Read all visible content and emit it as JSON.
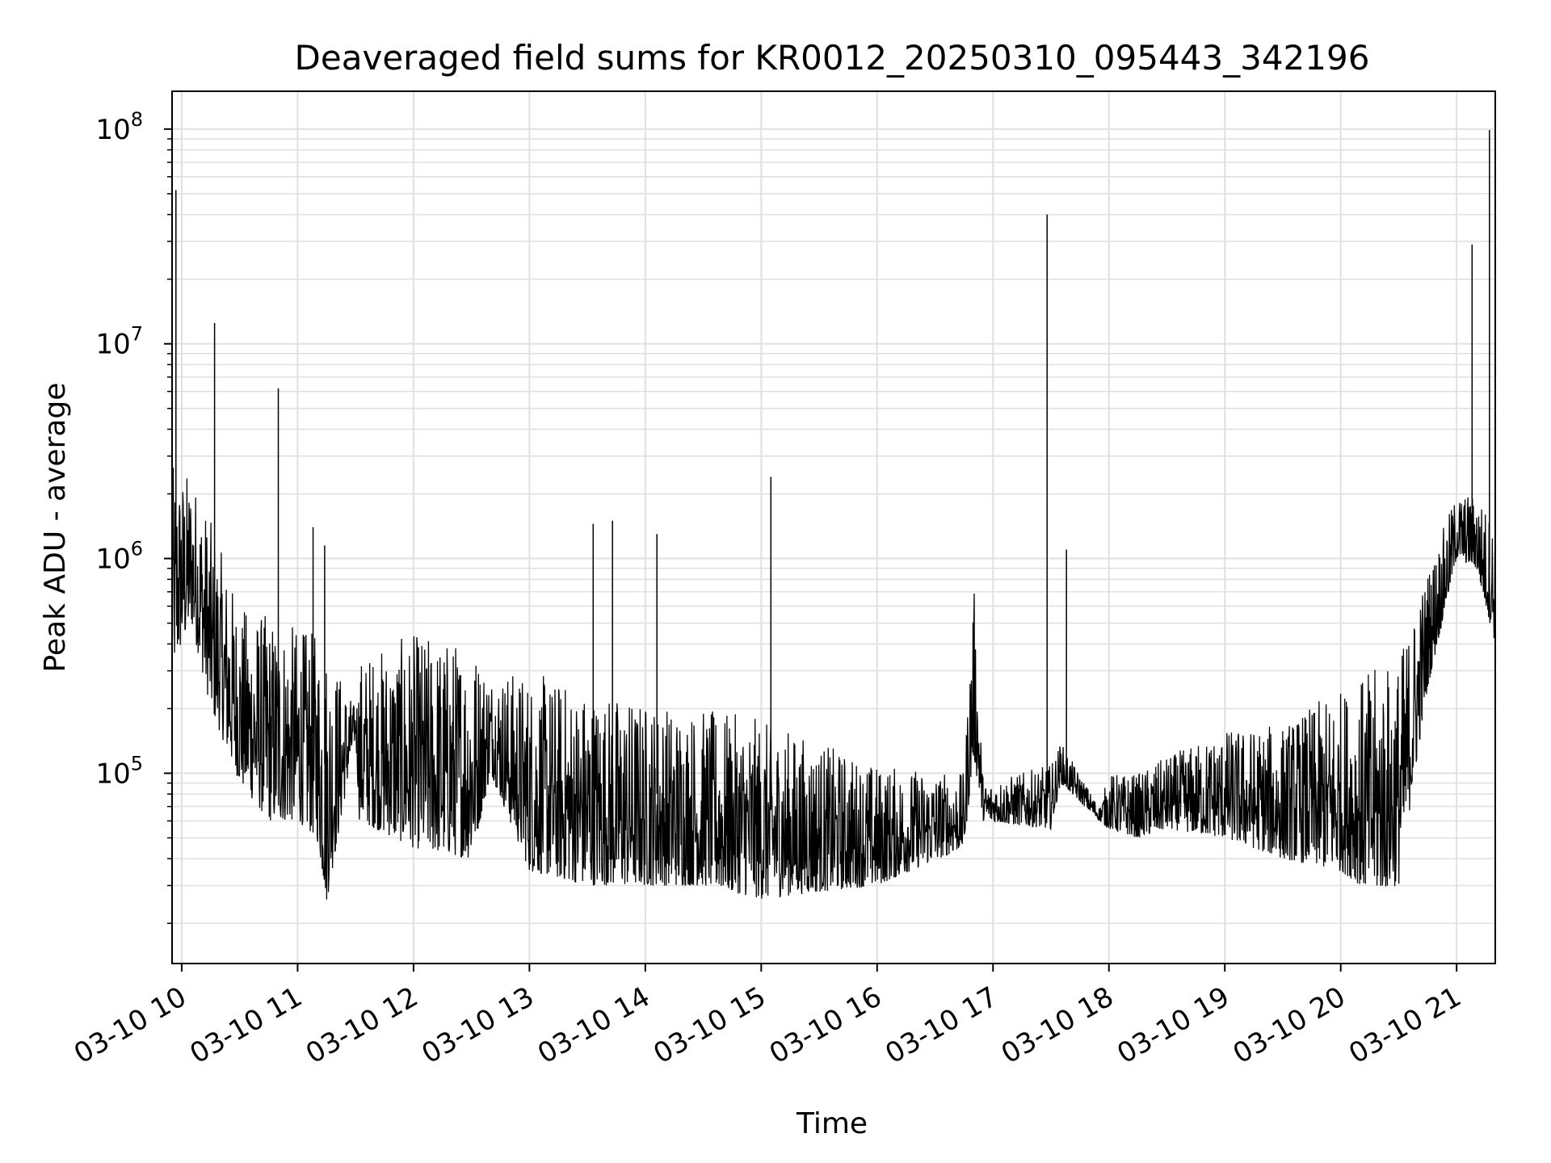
{
  "chart_data": {
    "type": "line",
    "title": "Deaveraged field sums for KR0012_20250310_095443_342196",
    "xlabel": "Time",
    "ylabel": "Peak ADU - average",
    "yscale": "log",
    "ylim": [
      13000,
      150000000
    ],
    "xlim": [
      "2025-03-10 09:55",
      "2025-03-10 21:20"
    ],
    "x_unit": "time",
    "grid": true,
    "line_color": "#000000",
    "grid_color": "#e0e0e0",
    "x_ticks": [
      {
        "value": "2025-03-10 10:00",
        "label": "03-10 10"
      },
      {
        "value": "2025-03-10 11:00",
        "label": "03-10 11"
      },
      {
        "value": "2025-03-10 12:00",
        "label": "03-10 12"
      },
      {
        "value": "2025-03-10 13:00",
        "label": "03-10 13"
      },
      {
        "value": "2025-03-10 14:00",
        "label": "03-10 14"
      },
      {
        "value": "2025-03-10 15:00",
        "label": "03-10 15"
      },
      {
        "value": "2025-03-10 16:00",
        "label": "03-10 16"
      },
      {
        "value": "2025-03-10 17:00",
        "label": "03-10 17"
      },
      {
        "value": "2025-03-10 18:00",
        "label": "03-10 18"
      },
      {
        "value": "2025-03-10 19:00",
        "label": "03-10 19"
      },
      {
        "value": "2025-03-10 20:00",
        "label": "03-10 20"
      },
      {
        "value": "2025-03-10 21:00",
        "label": "03-10 21"
      }
    ],
    "y_ticks": [
      {
        "value": 100000,
        "base": "10",
        "exp": "5"
      },
      {
        "value": 1000000,
        "base": "10",
        "exp": "6"
      },
      {
        "value": 10000000,
        "base": "10",
        "exp": "7"
      },
      {
        "value": 100000000,
        "base": "10",
        "exp": "8"
      }
    ],
    "envelope": [
      {
        "t": "09:55",
        "low": 300000,
        "high": 2700000
      },
      {
        "t": "10:05",
        "low": 500000,
        "high": 2500000
      },
      {
        "t": "10:15",
        "low": 200000,
        "high": 1500000
      },
      {
        "t": "10:30",
        "low": 90000,
        "high": 600000
      },
      {
        "t": "10:45",
        "low": 60000,
        "high": 550000
      },
      {
        "t": "11:00",
        "low": 60000,
        "high": 480000
      },
      {
        "t": "11:10",
        "low": 50000,
        "high": 450000
      },
      {
        "t": "11:15",
        "low": 25000,
        "high": 420000
      },
      {
        "t": "11:30",
        "low": 150000,
        "high": 200000
      },
      {
        "t": "11:32",
        "low": 60000,
        "high": 350000
      },
      {
        "t": "12:00",
        "low": 45000,
        "high": 450000
      },
      {
        "t": "12:30",
        "low": 40000,
        "high": 420000
      },
      {
        "t": "12:40",
        "low": 100000,
        "high": 300000
      },
      {
        "t": "13:00",
        "low": 35000,
        "high": 300000
      },
      {
        "t": "13:30",
        "low": 30000,
        "high": 250000
      },
      {
        "t": "14:00",
        "low": 30000,
        "high": 220000
      },
      {
        "t": "14:30",
        "low": 30000,
        "high": 200000
      },
      {
        "t": "15:00",
        "low": 26000,
        "high": 180000
      },
      {
        "t": "15:30",
        "low": 28000,
        "high": 140000
      },
      {
        "t": "16:00",
        "low": 30000,
        "high": 110000
      },
      {
        "t": "16:45",
        "low": 45000,
        "high": 100000
      },
      {
        "t": "16:50",
        "low": 120000,
        "high": 800000
      },
      {
        "t": "16:55",
        "low": 60000,
        "high": 90000
      },
      {
        "t": "17:30",
        "low": 55000,
        "high": 110000
      },
      {
        "t": "17:35",
        "low": 90000,
        "high": 140000
      },
      {
        "t": "17:55",
        "low": 60000,
        "high": 70000
      },
      {
        "t": "18:00",
        "low": 55000,
        "high": 100000
      },
      {
        "t": "18:15",
        "low": 50000,
        "high": 100000
      },
      {
        "t": "18:30",
        "low": 55000,
        "high": 120000
      },
      {
        "t": "19:00",
        "low": 50000,
        "high": 160000
      },
      {
        "t": "19:30",
        "low": 40000,
        "high": 170000
      },
      {
        "t": "20:00",
        "low": 35000,
        "high": 250000
      },
      {
        "t": "20:15",
        "low": 28000,
        "high": 300000
      },
      {
        "t": "20:30",
        "low": 30000,
        "high": 350000
      },
      {
        "t": "20:45",
        "low": 250000,
        "high": 900000
      },
      {
        "t": "21:00",
        "low": 1000000,
        "high": 2000000
      },
      {
        "t": "21:10",
        "low": 900000,
        "high": 2000000
      },
      {
        "t": "21:20",
        "low": 400000,
        "high": 1500000
      }
    ],
    "spikes": [
      {
        "t": "09:57",
        "value": 52000000
      },
      {
        "t": "10:17",
        "value": 12500000
      },
      {
        "t": "10:50",
        "value": 6200000
      },
      {
        "t": "11:08",
        "value": 1400000
      },
      {
        "t": "11:14",
        "value": 1150000
      },
      {
        "t": "13:33",
        "value": 1450000
      },
      {
        "t": "13:43",
        "value": 1500000
      },
      {
        "t": "14:06",
        "value": 1300000
      },
      {
        "t": "15:05",
        "value": 2400000
      },
      {
        "t": "17:28",
        "value": 40000000
      },
      {
        "t": "17:38",
        "value": 1100000
      },
      {
        "t": "21:08",
        "value": 29000000
      },
      {
        "t": "21:17",
        "value": 99000000
      }
    ]
  }
}
